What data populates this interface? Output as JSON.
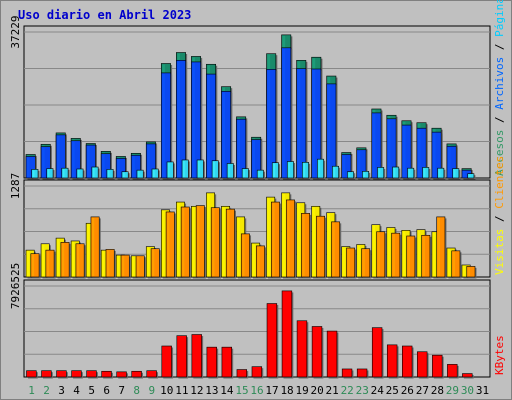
{
  "chart_data": {
    "type": "bar",
    "title": "Uso diario en Abril 2023",
    "categories": [
      "1",
      "2",
      "3",
      "4",
      "5",
      "6",
      "7",
      "8",
      "9",
      "10",
      "11",
      "12",
      "13",
      "14",
      "15",
      "16",
      "17",
      "18",
      "19",
      "20",
      "21",
      "22",
      "23",
      "24",
      "25",
      "26",
      "27",
      "28",
      "29",
      "30",
      "31"
    ],
    "weekend_days": [
      "1",
      "2",
      "8",
      "9",
      "15",
      "16",
      "22",
      "23",
      "29",
      "30"
    ],
    "panels": [
      {
        "name": "top",
        "ymax_label": "37229",
        "ymax": 37229,
        "right_labels": [
          {
            "text": "Accesos",
            "color": "#339966"
          },
          {
            "text": " / ",
            "color": "#000000"
          },
          {
            "text": "Archivos",
            "color": "#0066ff"
          },
          {
            "text": " / ",
            "color": "#000000"
          },
          {
            "text": "Páginas",
            "color": "#00ccff"
          }
        ],
        "series": [
          {
            "name": "Accesos",
            "color": "#1a8a6a",
            "values": [
              6000,
              8600,
              11500,
              10100,
              8800,
              6800,
              5500,
              6300,
              9200,
              29200,
              32000,
              31000,
              29000,
              23300,
              15600,
              10400,
              31700,
              36500,
              30000,
              30800,
              26000,
              6500,
              7700,
              17600,
              16000,
              14600,
              14100,
              12700,
              8700,
              2400,
              0
            ]
          },
          {
            "name": "Archivos",
            "color": "#0a48f0",
            "values": [
              5500,
              8000,
              11000,
              9500,
              8400,
              6200,
              5000,
              5800,
              8700,
              26800,
              30000,
              29600,
              26500,
              22100,
              15000,
              9800,
              27700,
              33200,
              27900,
              27800,
              24000,
              6000,
              7200,
              16600,
              15100,
              13500,
              12700,
              11700,
              8100,
              2000,
              0
            ]
          },
          {
            "name": "Páginas",
            "color": "#33d6f0",
            "values": [
              2200,
              2400,
              2500,
              2300,
              2800,
              2200,
              1600,
              2000,
              2300,
              4100,
              4600,
              4600,
              4400,
              3700,
              2400,
              2000,
              3900,
              4200,
              4000,
              4800,
              3000,
              1600,
              1700,
              2700,
              2800,
              2500,
              2700,
              2500,
              2400,
              1100,
              0
            ]
          }
        ]
      },
      {
        "name": "middle",
        "ymax_label": "1287",
        "ymax": 1287,
        "right_labels": [
          {
            "text": "Visitas",
            "color": "#ffff00"
          },
          {
            "text": " / ",
            "color": "#000000"
          },
          {
            "text": "Clientes",
            "color": "#ff9900"
          }
        ],
        "series": [
          {
            "name": "Visitas",
            "color": "#f5e800",
            "values": [
              380,
              470,
              550,
              510,
              760,
              380,
              310,
              300,
              430,
              950,
              1060,
              1000,
              1190,
              1000,
              850,
              480,
              1130,
              1190,
              1050,
              1000,
              910,
              430,
              460,
              740,
              700,
              660,
              670,
              640,
              410,
              170,
              0
            ]
          },
          {
            "name": "Clientes",
            "color": "#ff8c00",
            "values": [
              330,
              380,
              490,
              470,
              850,
              390,
              310,
              300,
              400,
              920,
              990,
              1010,
              980,
              960,
              610,
              440,
              1060,
              1090,
              900,
              860,
              780,
              410,
              400,
              640,
              620,
              580,
              590,
              850,
              370,
              150,
              0
            ]
          }
        ]
      },
      {
        "name": "bottom",
        "ymax_label": "7926525",
        "ymax": 7926525,
        "right_labels": [
          {
            "text": "KBytes",
            "color": "#ff0000"
          }
        ],
        "series": [
          {
            "name": "KBytes",
            "color": "#ff0000",
            "values": [
              550000,
              550000,
              550000,
              550000,
              550000,
              500000,
              450000,
              500000,
              550000,
              2700000,
              3600000,
              3700000,
              2600000,
              2600000,
              650000,
              900000,
              6400000,
              7500000,
              4900000,
              4400000,
              4000000,
              700000,
              700000,
              4300000,
              2800000,
              2700000,
              2200000,
              1900000,
              1100000,
              300000,
              0
            ]
          }
        ]
      }
    ]
  }
}
